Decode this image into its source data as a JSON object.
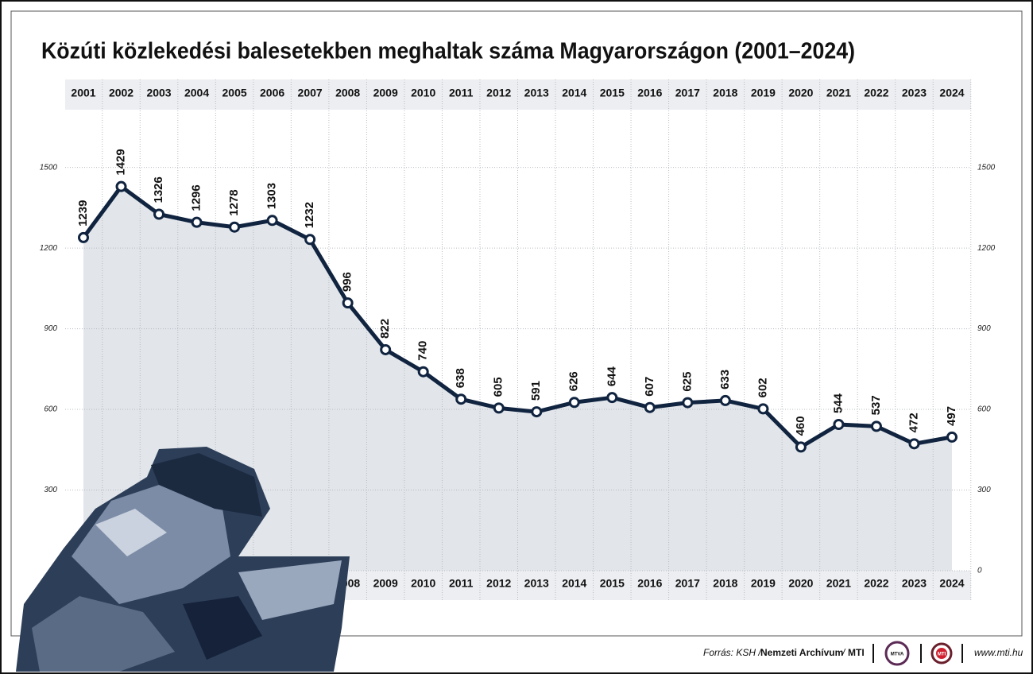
{
  "chart_data": {
    "type": "line",
    "title": "Közúti közlekedési balesetekben meghaltak száma Magyarországon (2001–2024)",
    "categories": [
      "2001",
      "2002",
      "2003",
      "2004",
      "2005",
      "2006",
      "2007",
      "2008",
      "2009",
      "2010",
      "2011",
      "2012",
      "2013",
      "2014",
      "2015",
      "2016",
      "2017",
      "2018",
      "2019",
      "2020",
      "2021",
      "2022",
      "2023",
      "2024"
    ],
    "values": [
      1239,
      1429,
      1326,
      1296,
      1278,
      1303,
      1232,
      996,
      822,
      740,
      638,
      605,
      591,
      626,
      644,
      607,
      625,
      633,
      602,
      460,
      544,
      537,
      472,
      497
    ],
    "color": "#10233f",
    "area_color": "#e2e6eb",
    "ylim": [
      0,
      1700
    ],
    "yticks": [
      0,
      300,
      600,
      900,
      1200,
      1500
    ],
    "grid": true
  },
  "footer": {
    "source_prefix": "Forrás: KSH /",
    "source_archive": "Nemzeti Archívum",
    "source_sep": "/",
    "source_mti": "MTI",
    "logo_1": "MTVA",
    "logo_2": "MTI",
    "website": "www.mti.hu"
  }
}
